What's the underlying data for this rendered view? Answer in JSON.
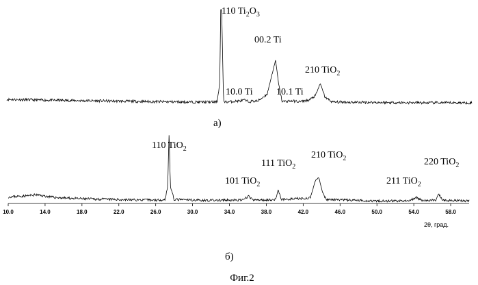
{
  "chart_data": [
    {
      "type": "line",
      "panel_label": "а)",
      "xlim": [
        10.0,
        60.0
      ],
      "series": [
        {
          "values": [
            [
              10,
              16
            ],
            [
              14,
              14
            ],
            [
              20,
              12
            ],
            [
              26,
              10
            ],
            [
              30,
              9
            ],
            [
              32.6,
              9
            ],
            [
              32.9,
              60
            ],
            [
              33.0,
              250
            ],
            [
              33.1,
              250
            ],
            [
              33.3,
              12
            ],
            [
              33.6,
              9
            ],
            [
              35.0,
              12
            ],
            [
              35.5,
              14
            ],
            [
              36.0,
              10
            ],
            [
              37.0,
              12
            ],
            [
              38.0,
              30
            ],
            [
              38.5,
              80
            ],
            [
              38.9,
              118
            ],
            [
              39.2,
              60
            ],
            [
              39.6,
              10
            ],
            [
              40.5,
              12
            ],
            [
              41.5,
              10
            ],
            [
              42.5,
              14
            ],
            [
              43.2,
              26
            ],
            [
              43.7,
              58
            ],
            [
              44.2,
              22
            ],
            [
              45,
              9
            ],
            [
              50,
              8
            ],
            [
              55,
              7
            ],
            [
              60,
              7
            ]
          ]
        }
      ],
      "annotations": [
        {
          "x": 33.1,
          "text": "110 Ti",
          "sub": "2",
          "text2": "O",
          "sub2": "3"
        },
        {
          "x": 38.9,
          "text": "00.2 Ti"
        },
        {
          "x": 35.3,
          "text": "10.0 Ti"
        },
        {
          "x": 40.5,
          "text": "10.1 Ti"
        },
        {
          "x": 43.7,
          "text": "210 TiO",
          "sub": "2"
        }
      ]
    },
    {
      "type": "line",
      "panel_label": "б)",
      "xlim": [
        10.0,
        60.0
      ],
      "x_ticks": [
        "10.0",
        "14.0",
        "18.0",
        "22.0",
        "26.0",
        "30.0",
        "34.0",
        "38.0",
        "42.0",
        "46.0",
        "50.0",
        "54.0",
        "58.0"
      ],
      "xlabel": "2θ, град.",
      "series": [
        {
          "values": [
            [
              10,
              22
            ],
            [
              12,
              26
            ],
            [
              13,
              30
            ],
            [
              15,
              20
            ],
            [
              18,
              15
            ],
            [
              22,
              12
            ],
            [
              26,
              10
            ],
            [
              27.0,
              12
            ],
            [
              27.3,
              60
            ],
            [
              27.45,
              260
            ],
            [
              27.6,
              60
            ],
            [
              28.0,
              12
            ],
            [
              32,
              9
            ],
            [
              35.5,
              10
            ],
            [
              36.1,
              26
            ],
            [
              36.5,
              10
            ],
            [
              39.0,
              12
            ],
            [
              39.3,
              50
            ],
            [
              39.6,
              12
            ],
            [
              42.8,
              18
            ],
            [
              43.3,
              82
            ],
            [
              43.7,
              95
            ],
            [
              44.1,
              40
            ],
            [
              44.5,
              12
            ],
            [
              50,
              7
            ],
            [
              53.5,
              7
            ],
            [
              54.3,
              20
            ],
            [
              54.8,
              9
            ],
            [
              56.4,
              10
            ],
            [
              56.7,
              32
            ],
            [
              57.1,
              9
            ],
            [
              60,
              7
            ]
          ]
        }
      ],
      "annotations": [
        {
          "x": 27.45,
          "text": "110 TiO",
          "sub": "2"
        },
        {
          "x": 36.1,
          "text": "101 TiO",
          "sub": "2"
        },
        {
          "x": 39.3,
          "text": "111 TiO",
          "sub": "2"
        },
        {
          "x": 43.7,
          "text": "210 TiO",
          "sub": "2"
        },
        {
          "x": 54.3,
          "text": "211 TiO",
          "sub": "2"
        },
        {
          "x": 56.7,
          "text": "220 TiO",
          "sub": "2"
        }
      ]
    }
  ],
  "figure_caption": "Фиг.2"
}
